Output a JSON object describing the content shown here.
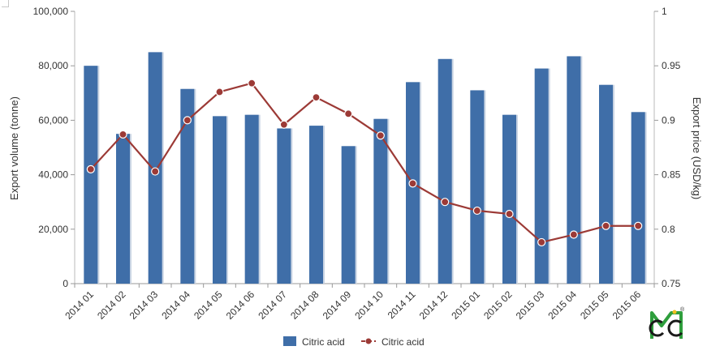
{
  "chart_data": {
    "type": "bar+line",
    "title": "",
    "categories": [
      "2014 01",
      "2014 02",
      "2014 03",
      "2014 04",
      "2014 05",
      "2014 06",
      "2014 07",
      "2014 08",
      "2014 09",
      "2014 10",
      "2014 11",
      "2014 12",
      "2015 01",
      "2015 02",
      "2015 03",
      "2015 04",
      "2015 05",
      "2015 06"
    ],
    "series": [
      {
        "name": "Citric acid",
        "kind": "bar",
        "axis": "left",
        "color": "#3f6ea8",
        "values": [
          80000,
          55000,
          85000,
          71500,
          61500,
          62000,
          57000,
          58000,
          50500,
          60500,
          74000,
          82500,
          71000,
          62000,
          79000,
          83500,
          73000,
          63000
        ]
      },
      {
        "name": "Citric acid",
        "kind": "line",
        "axis": "right",
        "color": "#9c3a36",
        "values": [
          0.855,
          0.887,
          0.853,
          0.9,
          0.926,
          0.934,
          0.896,
          0.921,
          0.906,
          0.886,
          0.842,
          0.825,
          0.817,
          0.814,
          0.788,
          0.795,
          0.803,
          0.803
        ]
      }
    ],
    "y_left": {
      "label": "Export volume (tonne)",
      "lim": [
        0,
        100000
      ],
      "ticks": [
        0,
        20000,
        40000,
        60000,
        80000,
        100000
      ],
      "tick_labels": [
        "0",
        "20,000",
        "40,000",
        "60,000",
        "80,000",
        "100,000"
      ]
    },
    "y_right": {
      "label": "Export price (USD/kg)",
      "lim": [
        0.75,
        1
      ],
      "ticks": [
        0.75,
        0.8,
        0.85,
        0.9,
        0.95,
        1
      ],
      "tick_labels": [
        "0.75",
        "0.8",
        "0.85",
        "0.9",
        "0.95",
        "1"
      ]
    },
    "grid": false,
    "legend": {
      "position": "bottom",
      "entries": [
        "Citric acid",
        "Citric acid"
      ]
    }
  },
  "logo": {
    "text": "CCM",
    "registered": "®",
    "colors": [
      "#2e9e3c",
      "#1a1a1a",
      "#f0c020"
    ]
  }
}
